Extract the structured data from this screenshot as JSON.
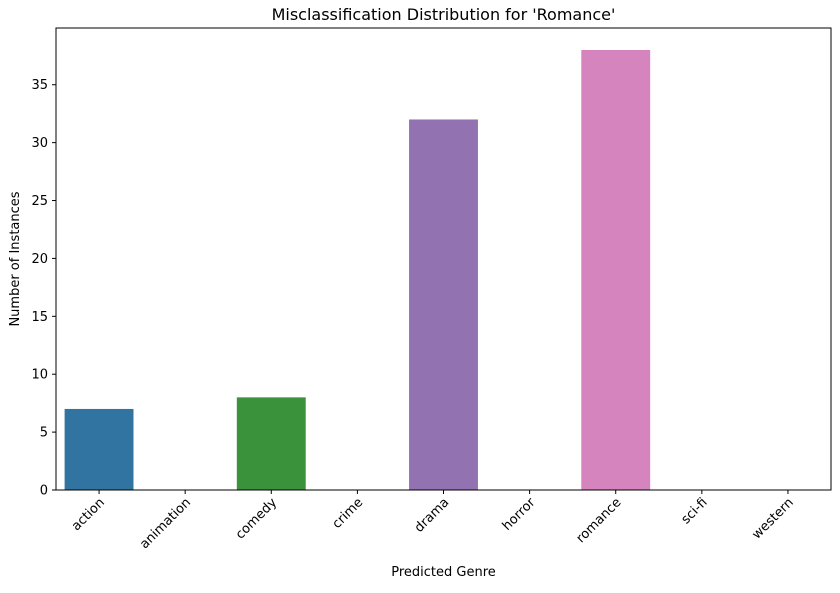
{
  "chart_data": {
    "type": "bar",
    "title": "Misclassification Distribution for 'Romance'",
    "xlabel": "Predicted Genre",
    "ylabel": "Number of Instances",
    "categories": [
      "action",
      "animation",
      "comedy",
      "crime",
      "drama",
      "horror",
      "romance",
      "sci-fi",
      "western"
    ],
    "values": [
      7,
      0,
      8,
      0,
      32,
      0,
      38,
      0,
      0
    ],
    "colors": [
      "#3274a1",
      "#e1812c",
      "#3a923a",
      "#c03d3e",
      "#9372b2",
      "#845b53",
      "#d684bd",
      "#7f7f7f",
      "#a9aa35"
    ],
    "ylim": [
      0,
      39.9
    ],
    "yticks": [
      0,
      5,
      10,
      15,
      20,
      25,
      30,
      35
    ],
    "grid": false,
    "legend": "none"
  }
}
